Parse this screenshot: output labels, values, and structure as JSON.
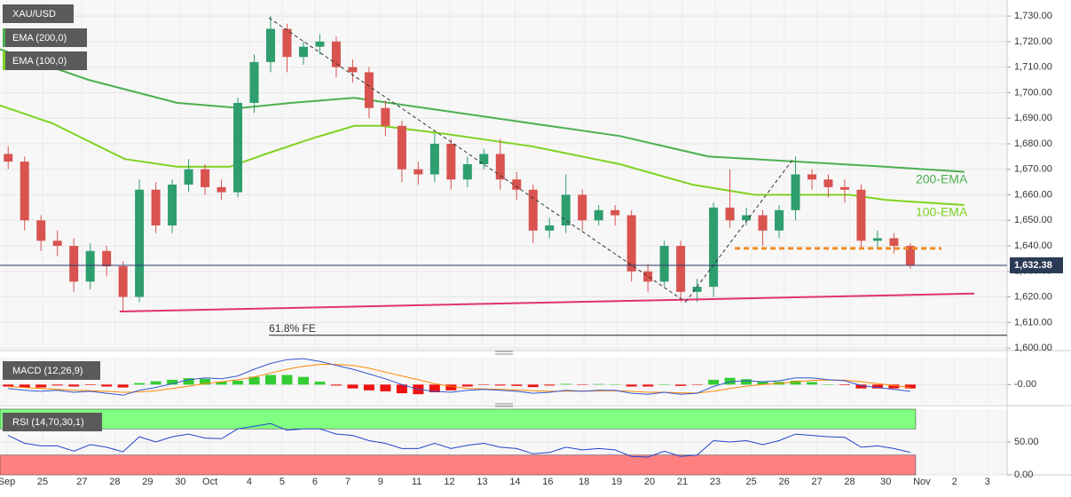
{
  "chart_data": [
    {
      "type": "candlestick",
      "title": "XAU/USD",
      "indicators": [
        "EMA (200,0)",
        "EMA (100,0)"
      ],
      "up_color": "#2e9e6e",
      "down_color": "#d9534f",
      "xlim": [
        0,
        30.7
      ],
      "xticks": [
        {
          "value": 0.2,
          "label": "Sep"
        },
        {
          "value": 1.3,
          "label": "25"
        },
        {
          "value": 2.5,
          "label": "27"
        },
        {
          "value": 3.5,
          "label": "28"
        },
        {
          "value": 4.5,
          "label": "29"
        },
        {
          "value": 5.5,
          "label": "30"
        },
        {
          "value": 6.4,
          "label": "Oct"
        },
        {
          "value": 7.6,
          "label": "4"
        },
        {
          "value": 8.6,
          "label": "5"
        },
        {
          "value": 9.6,
          "label": "6"
        },
        {
          "value": 10.6,
          "label": "7"
        },
        {
          "value": 11.6,
          "label": "9"
        },
        {
          "value": 12.7,
          "label": "11"
        },
        {
          "value": 13.7,
          "label": "12"
        },
        {
          "value": 14.7,
          "label": "13"
        },
        {
          "value": 15.7,
          "label": "14"
        },
        {
          "value": 16.7,
          "label": "16"
        },
        {
          "value": 17.8,
          "label": "18"
        },
        {
          "value": 18.8,
          "label": "19"
        },
        {
          "value": 19.8,
          "label": "20"
        },
        {
          "value": 20.8,
          "label": "21"
        },
        {
          "value": 21.8,
          "label": "23"
        },
        {
          "value": 22.9,
          "label": "25"
        },
        {
          "value": 23.9,
          "label": "26"
        },
        {
          "value": 24.9,
          "label": "27"
        },
        {
          "value": 25.9,
          "label": "28"
        },
        {
          "value": 27,
          "label": "30"
        },
        {
          "value": 28.1,
          "label": "Nov"
        },
        {
          "value": 29.1,
          "label": "2"
        },
        {
          "value": 30.1,
          "label": "3"
        }
      ],
      "ylim": [
        1599,
        1736.3
      ],
      "yticks": [
        {
          "value": 1600,
          "label": "1,600.00"
        },
        {
          "value": 1610,
          "label": "1,610.00"
        },
        {
          "value": 1620,
          "label": "1,620.00"
        },
        {
          "value": 1630,
          "label": "1,630.00"
        },
        {
          "value": 1640,
          "label": "1,640.00"
        },
        {
          "value": 1650,
          "label": "1,650.00"
        },
        {
          "value": 1660,
          "label": "1,660.00"
        },
        {
          "value": 1670,
          "label": "1,670.00"
        },
        {
          "value": 1680,
          "label": "1,680.00"
        },
        {
          "value": 1690,
          "label": "1,690.00"
        },
        {
          "value": 1700,
          "label": "1,700.00"
        },
        {
          "value": 1710,
          "label": "1,710.00"
        },
        {
          "value": 1720,
          "label": "1,720.00"
        },
        {
          "value": 1730,
          "label": "1,730.00"
        }
      ],
      "x": [
        0.25,
        0.75,
        1.25,
        1.75,
        2.25,
        2.75,
        3.25,
        3.75,
        4.25,
        4.75,
        5.25,
        5.75,
        6.25,
        6.75,
        7.25,
        7.75,
        8.25,
        8.75,
        9.25,
        9.75,
        10.25,
        10.75,
        11.25,
        11.75,
        12.25,
        12.75,
        13.25,
        13.75,
        14.25,
        14.75,
        15.25,
        15.75,
        16.25,
        16.75,
        17.25,
        17.75,
        18.25,
        18.75,
        19.25,
        19.75,
        20.25,
        20.75,
        21.25,
        21.75,
        22.25,
        22.75,
        23.25,
        23.75,
        24.25,
        24.75,
        25.25,
        25.75,
        26.25,
        26.75,
        27.25,
        27.75
      ],
      "open": [
        1676,
        1673,
        1650,
        1642,
        1640,
        1626,
        1638,
        1632,
        1620,
        1662,
        1648,
        1664,
        1670,
        1663,
        1661,
        1696,
        1712,
        1725,
        1714,
        1718,
        1720,
        1710,
        1708,
        1694,
        1687,
        1670,
        1668,
        1680,
        1666,
        1672,
        1676,
        1666,
        1662,
        1646,
        1648,
        1660,
        1650,
        1654,
        1652,
        1630,
        1626,
        1640,
        1622,
        1624,
        1655,
        1650,
        1652,
        1646,
        1654,
        1668,
        1666,
        1663,
        1662,
        1642,
        1643,
        1640
      ],
      "high": [
        1679,
        1675,
        1652,
        1646,
        1643,
        1641,
        1640,
        1634,
        1666,
        1665,
        1666,
        1674,
        1672,
        1666,
        1698,
        1715,
        1730,
        1727,
        1720,
        1723,
        1722,
        1713,
        1710,
        1697,
        1689,
        1673,
        1684,
        1682,
        1675,
        1678,
        1682,
        1669,
        1664,
        1651,
        1668,
        1662,
        1656,
        1656,
        1654,
        1633,
        1642,
        1642,
        1627,
        1657,
        1670,
        1655,
        1654,
        1656,
        1675,
        1670,
        1668,
        1666,
        1664,
        1646,
        1645,
        1641
      ],
      "low": [
        1670,
        1646,
        1638,
        1636,
        1622,
        1623,
        1628,
        1614,
        1618,
        1645,
        1645,
        1661,
        1660,
        1658,
        1659,
        1692,
        1708,
        1708,
        1711,
        1715,
        1706,
        1704,
        1690,
        1683,
        1665,
        1664,
        1665,
        1662,
        1663,
        1670,
        1662,
        1658,
        1641,
        1643,
        1645,
        1646,
        1648,
        1648,
        1626,
        1622,
        1624,
        1618,
        1618,
        1620,
        1647,
        1648,
        1640,
        1643,
        1650,
        1662,
        1659,
        1657,
        1639,
        1639,
        1637,
        1631
      ],
      "close": [
        1673,
        1650,
        1642,
        1640,
        1626,
        1638,
        1632,
        1620,
        1662,
        1648,
        1664,
        1670,
        1663,
        1661,
        1696,
        1712,
        1725,
        1714,
        1718,
        1720,
        1710,
        1708,
        1694,
        1687,
        1670,
        1668,
        1680,
        1666,
        1672,
        1676,
        1666,
        1662,
        1646,
        1648,
        1660,
        1650,
        1654,
        1652,
        1630,
        1626,
        1640,
        1622,
        1624,
        1655,
        1650,
        1652,
        1646,
        1654,
        1668,
        1666,
        1663,
        1662,
        1642,
        1643,
        1640,
        1632.38
      ],
      "lines": [
        {
          "name": "200-EMA",
          "color": "#4caf50",
          "x": [
            0,
            2.7,
            5.4,
            7.3,
            8.9,
            10.8,
            13.5,
            16.2,
            18.9,
            21.6,
            24.3,
            27,
            29.4
          ],
          "values": [
            1717,
            1705,
            1696,
            1694,
            1696,
            1698,
            1693,
            1688,
            1683,
            1675,
            1673,
            1671,
            1669
          ]
        },
        {
          "name": "100-EMA",
          "color": "#7ed321",
          "x": [
            0,
            1.6,
            3.8,
            5.4,
            7,
            8.1,
            9.5,
            10.8,
            11.6,
            13.5,
            16.2,
            18.9,
            21.1,
            23,
            24.3,
            25.9,
            27,
            29.4
          ],
          "values": [
            1695,
            1688,
            1674,
            1671,
            1671,
            1676,
            1682,
            1687,
            1687,
            1684,
            1679,
            1672,
            1664,
            1660,
            1660,
            1660,
            1658,
            1656
          ]
        }
      ],
      "trendlines": [
        {
          "color": "#e0336e",
          "dash": false,
          "x": [
            3.65,
            29.7
          ],
          "y": [
            1614.3,
            1621.3
          ]
        },
        {
          "color": "#f08a24",
          "dash": true,
          "x": [
            22.4,
            28.7
          ],
          "y": [
            1639,
            1639
          ]
        },
        {
          "color": "#333333",
          "dash": true,
          "x": [
            8.2,
            20.9
          ],
          "y": [
            1729.3,
            1618
          ]
        },
        {
          "color": "#333333",
          "dash": true,
          "x": [
            20.9,
            24.2
          ],
          "y": [
            1618,
            1674.4
          ]
        }
      ],
      "level": {
        "label": "61.8% FE",
        "value": 1605,
        "x": [
          8.2,
          30.7
        ]
      },
      "last_price": {
        "value": 1632.38,
        "label": "1,632.38"
      }
    },
    {
      "type": "macd",
      "title": "MACD (12,26,9)",
      "ylim": [
        -10,
        14
      ],
      "yticks": [
        {
          "value": 0,
          "label": "-0.00"
        }
      ],
      "macd": [
        -2,
        -3,
        -3.5,
        -3,
        -4,
        -3.5,
        -4.5,
        -5.5,
        -3,
        -1.5,
        0.5,
        2.5,
        3.5,
        3,
        4.5,
        8,
        11,
        13,
        13.5,
        12,
        10,
        8,
        5.5,
        3,
        0,
        -2.5,
        -3.5,
        -4,
        -3,
        -2.5,
        -3,
        -3.5,
        -4.5,
        -4,
        -3,
        -3.5,
        -3,
        -3,
        -4.5,
        -5,
        -4,
        -5,
        -4.5,
        -1,
        1.5,
        2,
        1.5,
        2,
        3.5,
        3.5,
        2.5,
        2,
        -0.5,
        -1.5,
        -2.5,
        -3.5
      ],
      "signal": [
        -1,
        -1.5,
        -2,
        -2.5,
        -3,
        -3.2,
        -3.5,
        -4,
        -3.8,
        -3.2,
        -2,
        -0.8,
        0.5,
        1.5,
        2.5,
        4,
        6,
        8,
        9.5,
        10.5,
        10.5,
        10,
        8.5,
        6.5,
        4.5,
        2.5,
        0.5,
        -1,
        -2,
        -2.3,
        -2.5,
        -2.8,
        -3.2,
        -3.5,
        -3.4,
        -3.4,
        -3.3,
        -3.2,
        -3.5,
        -4,
        -4,
        -4.3,
        -4.4,
        -3.5,
        -2,
        -0.8,
        0,
        0.6,
        1.5,
        2.2,
        2.4,
        2.3,
        1.5,
        0.5,
        -0.5,
        -1.5
      ],
      "histogram": [
        -1,
        -1.5,
        -1.5,
        -0.5,
        -1,
        -0.3,
        -1,
        -1.5,
        0.8,
        1.7,
        2.5,
        3.3,
        3,
        1.5,
        2,
        4,
        5,
        5,
        4,
        1.5,
        -0.5,
        -2,
        -3,
        -3.5,
        -4.5,
        -5,
        -4,
        -3,
        -1,
        -0.2,
        -0.5,
        -0.7,
        -1.3,
        -0.5,
        0.4,
        -0.1,
        0.3,
        0.2,
        -1,
        -1,
        0,
        -0.7,
        -0.1,
        2.5,
        3.5,
        2.8,
        1.5,
        1.4,
        2,
        1.3,
        0.1,
        -0.3,
        -2,
        -2,
        -2,
        -2
      ],
      "macd_color": "#3355cc",
      "signal_color": "#ff8800",
      "up_color": "#33cc33",
      "down_color": "#ee1111"
    },
    {
      "type": "rsi",
      "title": "RSI (14,70,30,1)",
      "ylim": [
        0,
        100
      ],
      "yticks": [
        {
          "value": 0,
          "label": "0.00"
        },
        {
          "value": 50,
          "label": "50.00"
        }
      ],
      "overbought": 70,
      "oversold": 30,
      "color": "#2244cc",
      "values": [
        60,
        48,
        44,
        44,
        36,
        46,
        42,
        35,
        58,
        50,
        58,
        62,
        56,
        55,
        70,
        74,
        78,
        68,
        70,
        70,
        62,
        60,
        52,
        48,
        40,
        40,
        48,
        40,
        45,
        48,
        42,
        40,
        32,
        34,
        42,
        38,
        40,
        38,
        28,
        27,
        36,
        28,
        30,
        52,
        50,
        52,
        46,
        52,
        62,
        60,
        58,
        57,
        42,
        44,
        40,
        34
      ]
    }
  ]
}
